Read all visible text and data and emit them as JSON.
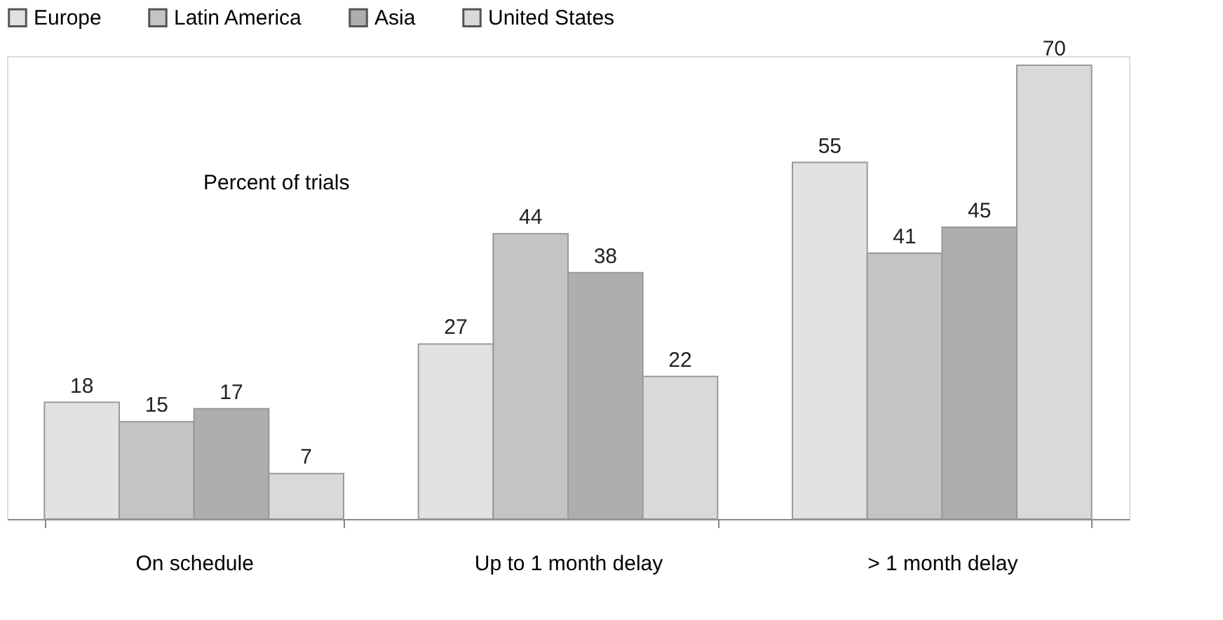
{
  "chart_data": {
    "type": "bar",
    "ylabel": "Percent of trials",
    "categories": [
      "On schedule",
      "Up to 1 month delay",
      "> 1 month delay"
    ],
    "series": [
      {
        "name": "Europe",
        "color": "#e2e2e2",
        "values": [
          18,
          27,
          55
        ]
      },
      {
        "name": "Latin America",
        "color": "#c4c4c4",
        "values": [
          15,
          44,
          41
        ]
      },
      {
        "name": "Asia",
        "color": "#aeaeae",
        "values": [
          17,
          38,
          45
        ]
      },
      {
        "name": "United States",
        "color": "#d9d9d9",
        "values": [
          7,
          22,
          70
        ]
      }
    ],
    "data_labels": true,
    "legend": "top left",
    "grid": false
  }
}
